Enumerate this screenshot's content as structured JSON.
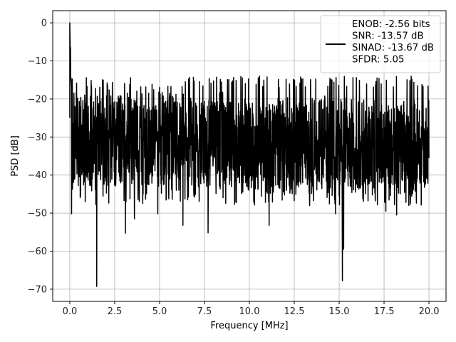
{
  "chart_data": {
    "type": "line",
    "xlabel": "Frequency [MHz]",
    "ylabel": "PSD [dB]",
    "xlim": [
      -0.95,
      20.95
    ],
    "ylim": [
      -73.2,
      3.2
    ],
    "xticks": [
      0.0,
      2.5,
      5.0,
      7.5,
      10.0,
      12.5,
      15.0,
      17.5,
      20.0
    ],
    "xtick_labels": [
      "0.0",
      "2.5",
      "5.0",
      "7.5",
      "10.0",
      "12.5",
      "15.0",
      "17.5",
      "20.0"
    ],
    "yticks": [
      0,
      -10,
      -20,
      -30,
      -40,
      -50,
      -60,
      -70
    ],
    "ytick_labels": [
      "0",
      "−10",
      "−20",
      "−30",
      "−40",
      "−50",
      "−60",
      "−70"
    ],
    "grid": true,
    "legend": {
      "placement": "top-right",
      "lines": [
        "ENOB: -2.56 bits",
        "SNR: -13.57 dB",
        "SINAD: -13.67 dB",
        "SFDR: 5.05"
      ]
    },
    "series": [
      {
        "color": "#000000",
        "x_range": [
          0,
          20
        ],
        "points": 2000,
        "noise_band": [
          -42,
          -16
        ],
        "peaks": [
          {
            "x": 0.0,
            "y": 0.0
          },
          {
            "x": 0.04,
            "y": -6.5
          },
          {
            "x": 0.1,
            "y": -50.2
          },
          {
            "x": 0.6,
            "y": -45.5
          },
          {
            "x": 1.5,
            "y": -69.3
          },
          {
            "x": 3.1,
            "y": -55.3
          },
          {
            "x": 3.6,
            "y": -51.5
          },
          {
            "x": 4.9,
            "y": -50.2
          },
          {
            "x": 6.3,
            "y": -53.2
          },
          {
            "x": 7.7,
            "y": -55.2
          },
          {
            "x": 11.1,
            "y": -53.2
          },
          {
            "x": 14.8,
            "y": -50.2
          },
          {
            "x": 15.18,
            "y": -67.8
          },
          {
            "x": 15.25,
            "y": -59.5
          },
          {
            "x": 17.6,
            "y": -49.5
          },
          {
            "x": 18.2,
            "y": -50.5
          }
        ]
      }
    ]
  }
}
